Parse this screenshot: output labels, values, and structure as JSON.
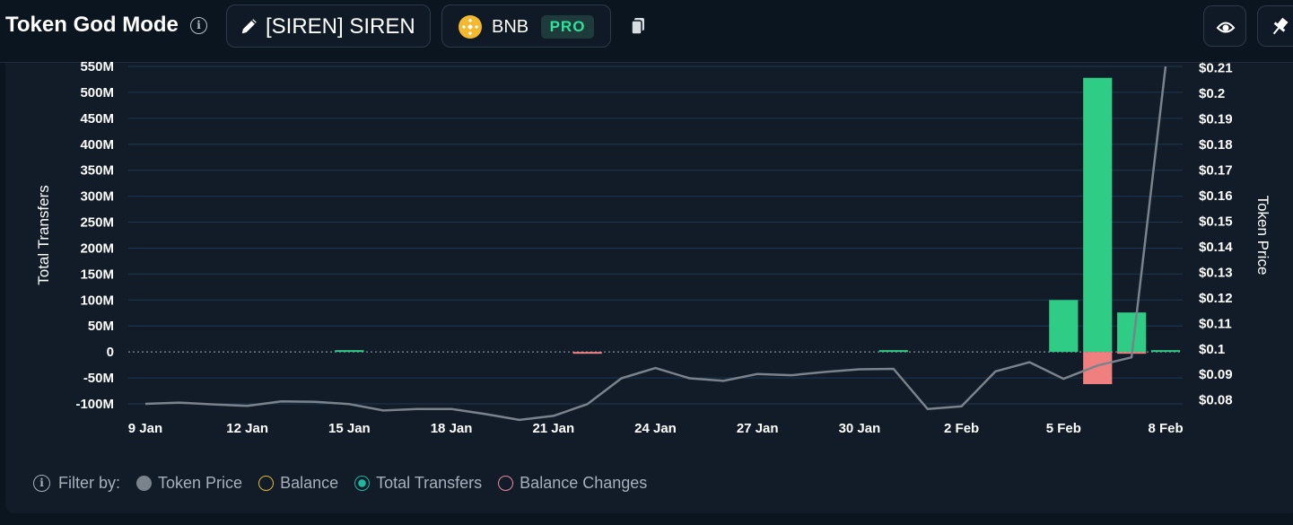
{
  "header": {
    "title": "Token God Mode",
    "token_label": "[SIREN] SIREN",
    "chain_label": "BNB",
    "pro_badge": "PRO"
  },
  "legend": {
    "filter_label": "Filter by:",
    "items": [
      "Token Price",
      "Balance",
      "Total Transfers",
      "Balance Changes"
    ]
  },
  "colors": {
    "positive_bar": "#2ecc85",
    "negative_bar": "#f08080",
    "price_line": "#7a828c",
    "grid": "#1e3650",
    "background": "#111c28"
  },
  "chart_data": {
    "type": "bar",
    "x_ticks": [
      "9 Jan",
      "12 Jan",
      "15 Jan",
      "18 Jan",
      "21 Jan",
      "24 Jan",
      "27 Jan",
      "30 Jan",
      "2 Feb",
      "5 Feb",
      "8 Feb"
    ],
    "dates": [
      "9 Jan",
      "10 Jan",
      "11 Jan",
      "12 Jan",
      "13 Jan",
      "14 Jan",
      "15 Jan",
      "16 Jan",
      "17 Jan",
      "18 Jan",
      "19 Jan",
      "20 Jan",
      "21 Jan",
      "22 Jan",
      "23 Jan",
      "24 Jan",
      "25 Jan",
      "26 Jan",
      "27 Jan",
      "28 Jan",
      "29 Jan",
      "30 Jan",
      "31 Jan",
      "1 Feb",
      "2 Feb",
      "3 Feb",
      "4 Feb",
      "5 Feb",
      "6 Feb",
      "7 Feb",
      "8 Feb"
    ],
    "left_axis": {
      "label": "Total Transfers",
      "ticks": [
        "-100M",
        "-50M",
        "0",
        "50M",
        "100M",
        "150M",
        "200M",
        "250M",
        "300M",
        "350M",
        "400M",
        "450M",
        "500M",
        "550M"
      ],
      "range": [
        -100000000,
        550000000
      ]
    },
    "right_axis": {
      "label": "Token Price",
      "ticks": [
        "$0.08",
        "$0.09",
        "$0.1",
        "$0.11",
        "$0.12",
        "$0.13",
        "$0.14",
        "$0.15",
        "$0.16",
        "$0.17",
        "$0.18",
        "$0.19",
        "$0.2",
        "$0.21"
      ],
      "range": [
        0.0785,
        0.2105
      ]
    },
    "series": [
      {
        "name": "Total Transfers",
        "kind": "bar",
        "values": [
          0,
          0,
          0,
          0,
          0,
          0,
          500000,
          0,
          0,
          0,
          0,
          0,
          0,
          0,
          0,
          0,
          0,
          0,
          0,
          0,
          0,
          0,
          500000,
          0,
          0,
          0,
          0,
          100000000,
          528000000,
          76000000,
          1500000
        ]
      },
      {
        "name": "Balance Changes",
        "kind": "bar",
        "values": [
          0,
          0,
          0,
          0,
          0,
          0,
          0,
          0,
          0,
          0,
          0,
          0,
          0,
          -500000,
          0,
          0,
          0,
          0,
          0,
          0,
          0,
          0,
          0,
          0,
          0,
          0,
          0,
          0,
          -62000000,
          -2500000,
          0
        ]
      },
      {
        "name": "Token Price",
        "kind": "line",
        "values": [
          0.0785,
          0.079,
          0.0783,
          0.0777,
          0.0795,
          0.0793,
          0.0784,
          0.0759,
          0.0765,
          0.0765,
          0.0745,
          0.0722,
          0.0738,
          0.0784,
          0.0885,
          0.0925,
          0.0885,
          0.0875,
          0.0902,
          0.0897,
          0.091,
          0.092,
          0.0922,
          0.0765,
          0.0775,
          0.0912,
          0.0948,
          0.0883,
          0.0935,
          0.0967,
          0.2105
        ]
      }
    ],
    "grid": true
  }
}
